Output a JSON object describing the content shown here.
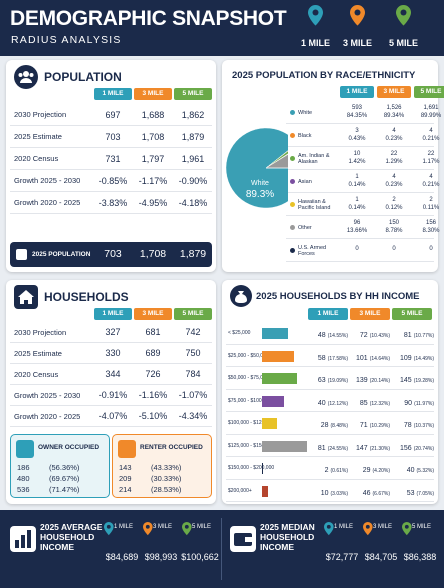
{
  "header": {
    "title": "DEMOGRAPHIC SNAPSHOT",
    "subtitle": "RADIUS ANALYSIS",
    "radii": [
      "1 MILE",
      "3 MILE",
      "5 MILE"
    ]
  },
  "population": {
    "title": "POPULATION",
    "columns": [
      "1 MILE",
      "3 MILE",
      "5 MILE"
    ],
    "rows": [
      [
        "2030 Projection",
        "697",
        "1,688",
        "1,862"
      ],
      [
        "2025 Estimate",
        "703",
        "1,708",
        "1,879"
      ],
      [
        "2020 Census",
        "731",
        "1,797",
        "1,961"
      ],
      [
        "Growth 2025 - 2030",
        "-0.85%",
        "-1.17%",
        "-0.90%"
      ],
      [
        "Growth 2020 - 2025",
        "-3.83%",
        "-4.95%",
        "-4.18%"
      ]
    ],
    "summary": {
      "label": "2025 POPULATION",
      "values": [
        "703",
        "1,708",
        "1,879"
      ]
    }
  },
  "race": {
    "title": "2025 POPULATION BY RACE/ETHNICITY",
    "columns": [
      "1 MILE",
      "3 MILE",
      "5 MILE"
    ],
    "rows": [
      {
        "label": "White",
        "color": "#3a9fb4",
        "cells": [
          [
            "593",
            "84.35%"
          ],
          [
            "1,526",
            "89.34%"
          ],
          [
            "1,691",
            "89.99%"
          ]
        ]
      },
      {
        "label": "Black",
        "color": "#f08a2a",
        "cells": [
          [
            "3",
            "0.43%"
          ],
          [
            "4",
            "0.23%"
          ],
          [
            "4",
            "0.21%"
          ]
        ]
      },
      {
        "label": "Am. Indian & Alaskan",
        "color": "#6aaa48",
        "cells": [
          [
            "10",
            "1.42%"
          ],
          [
            "22",
            "1.29%"
          ],
          [
            "22",
            "1.17%"
          ]
        ]
      },
      {
        "label": "Asian",
        "color": "#7b4fa0",
        "cells": [
          [
            "1",
            "0.14%"
          ],
          [
            "4",
            "0.23%"
          ],
          [
            "4",
            "0.21%"
          ]
        ]
      },
      {
        "label": "Hawaiian & Pacific Island",
        "color": "#e8c228",
        "cells": [
          [
            "1",
            "0.14%"
          ],
          [
            "2",
            "0.12%"
          ],
          [
            "2",
            "0.11%"
          ]
        ]
      },
      {
        "label": "Other",
        "color": "#9a9a9a",
        "cells": [
          [
            "96",
            "13.66%"
          ],
          [
            "150",
            "8.78%"
          ],
          [
            "156",
            "8.30%"
          ]
        ]
      },
      {
        "label": "U.S. Armed Forces",
        "color": "#1b2a4a",
        "cells": [
          [
            "0"
          ],
          [
            "0"
          ],
          [
            "0"
          ]
        ]
      }
    ],
    "pie": {
      "type": "pie",
      "values": [
        89.34,
        0.23,
        1.29,
        0.23,
        0.12,
        8.78,
        0
      ],
      "label": "White",
      "value_label": "89.3%"
    }
  },
  "households": {
    "title": "HOUSEHOLDS",
    "columns": [
      "1 MILE",
      "3 MILE",
      "5 MILE"
    ],
    "rows": [
      [
        "2030 Projection",
        "327",
        "681",
        "742"
      ],
      [
        "2025 Estimate",
        "330",
        "689",
        "750"
      ],
      [
        "2020 Census",
        "344",
        "726",
        "784"
      ],
      [
        "Growth 2025 - 2030",
        "-0.91%",
        "-1.16%",
        "-1.07%"
      ],
      [
        "Growth 2020 - 2025",
        "-4.07%",
        "-5.10%",
        "-4.34%"
      ]
    ],
    "owner": {
      "label": "OWNER OCCUPIED",
      "rows": [
        [
          "186",
          "(56.36%)"
        ],
        [
          "480",
          "(69.67%)"
        ],
        [
          "536",
          "(71.47%)"
        ]
      ]
    },
    "renter": {
      "label": "RENTER OCCUPIED",
      "rows": [
        [
          "143",
          "(43.33%)"
        ],
        [
          "209",
          "(30.33%)"
        ],
        [
          "214",
          "(28.53%)"
        ]
      ]
    }
  },
  "hh_income": {
    "title": "2025 HOUSEHOLDS BY HH INCOME",
    "columns": [
      "1 MILE",
      "3 MILE",
      "5 MILE"
    ],
    "rows": [
      {
        "label": "< $25,000",
        "color": "#3a9fb4",
        "values": [
          48,
          72,
          81
        ],
        "percents": [
          "(14.55%)",
          "(10.43%)",
          "(10.77%)"
        ]
      },
      {
        "label": "$25,000 - $50,000",
        "color": "#f08a2a",
        "values": [
          58,
          101,
          109
        ],
        "percents": [
          "(17.58%)",
          "(14.64%)",
          "(14.49%)"
        ]
      },
      {
        "label": "$50,000 - $75,000",
        "color": "#6aaa48",
        "values": [
          63,
          139,
          145
        ],
        "percents": [
          "(19.09%)",
          "(20.14%)",
          "(19.28%)"
        ]
      },
      {
        "label": "$75,000 - $100,000",
        "color": "#7b4fa0",
        "values": [
          40,
          85,
          90
        ],
        "percents": [
          "(12.12%)",
          "(12.32%)",
          "(11.97%)"
        ]
      },
      {
        "label": "$100,000 - $125,000",
        "color": "#e8c228",
        "values": [
          28,
          71,
          78
        ],
        "percents": [
          "(8.48%)",
          "(10.29%)",
          "(10.37%)"
        ]
      },
      {
        "label": "$125,000 - $150,000",
        "color": "#9a9a9a",
        "values": [
          81,
          147,
          156
        ],
        "percents": [
          "(24.55%)",
          "(21.30%)",
          "(20.74%)"
        ]
      },
      {
        "label": "$150,000 - $200,000",
        "color": "#1b2a4a",
        "values": [
          2,
          29,
          40
        ],
        "percents": [
          "(0.61%)",
          "(4.20%)",
          "(5.32%)"
        ]
      },
      {
        "label": "$200,000+",
        "color": "#b5452e",
        "values": [
          10,
          46,
          53
        ],
        "percents": [
          "(3.03%)",
          "(6.67%)",
          "(7.05%)"
        ]
      }
    ]
  },
  "income": [
    {
      "title": "2025 AVERAGE HOUSEHOLD INCOME",
      "radii": [
        "1 MILE",
        "3 MILE",
        "5 MILE"
      ],
      "values": [
        "$84,689",
        "$98,993",
        "$100,662"
      ]
    },
    {
      "title": "2025 MEDIAN HOUSEHOLD INCOME",
      "radii": [
        "1 MILE",
        "3 MILE",
        "5 MILE"
      ],
      "values": [
        "$72,777",
        "$84,705",
        "$86,388"
      ]
    }
  ]
}
